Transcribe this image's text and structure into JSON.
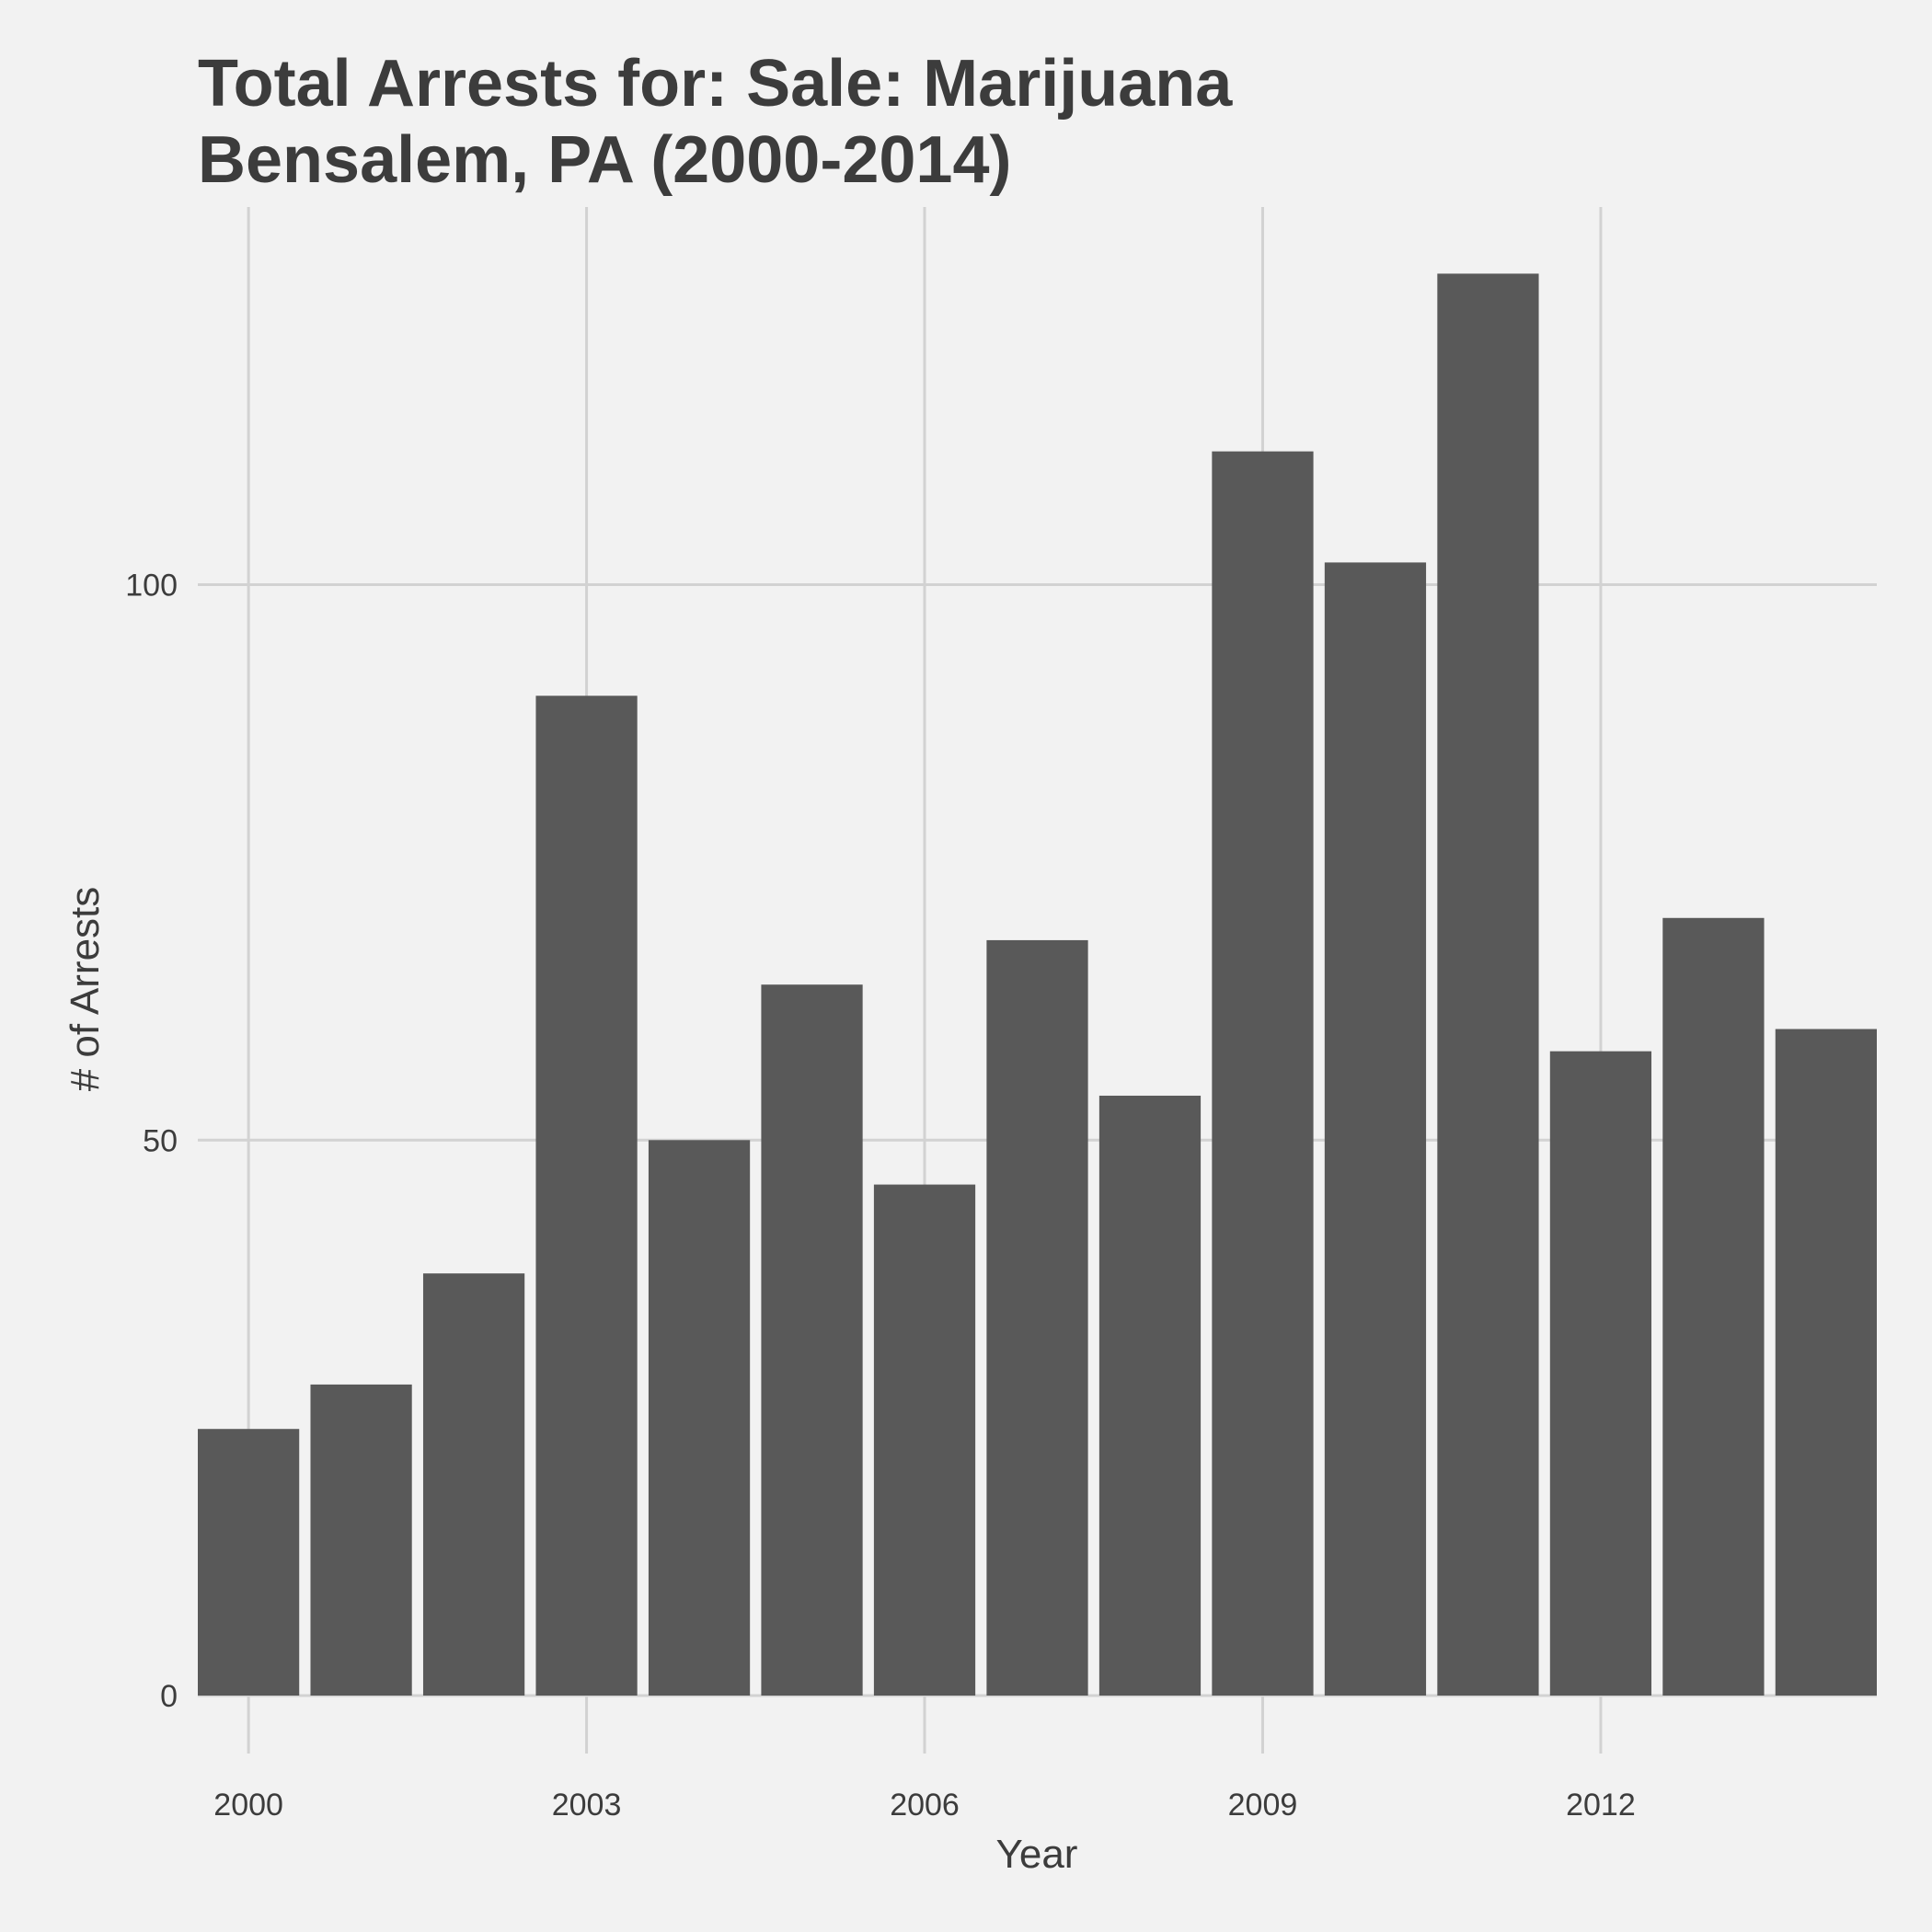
{
  "chart_data": {
    "type": "bar",
    "title_lines": [
      "Total Arrests for: Sale: Marijuana",
      "Bensalem, PA (2000-2014)"
    ],
    "xlabel": "Year",
    "ylabel": "# of Arrests",
    "x": [
      2000,
      2001,
      2002,
      2003,
      2004,
      2005,
      2006,
      2007,
      2008,
      2009,
      2010,
      2011,
      2012,
      2013,
      2014
    ],
    "values": [
      24,
      28,
      38,
      90,
      50,
      64,
      46,
      68,
      54,
      112,
      102,
      128,
      58,
      70,
      60
    ],
    "xticks": [
      2000,
      2003,
      2006,
      2009,
      2012
    ],
    "yticks": [
      0,
      50,
      100
    ],
    "ylim": [
      0,
      134
    ],
    "xlim": [
      1999.55,
      2014.45
    ],
    "grid": true,
    "legend": "none",
    "bar_color": "#595959"
  }
}
